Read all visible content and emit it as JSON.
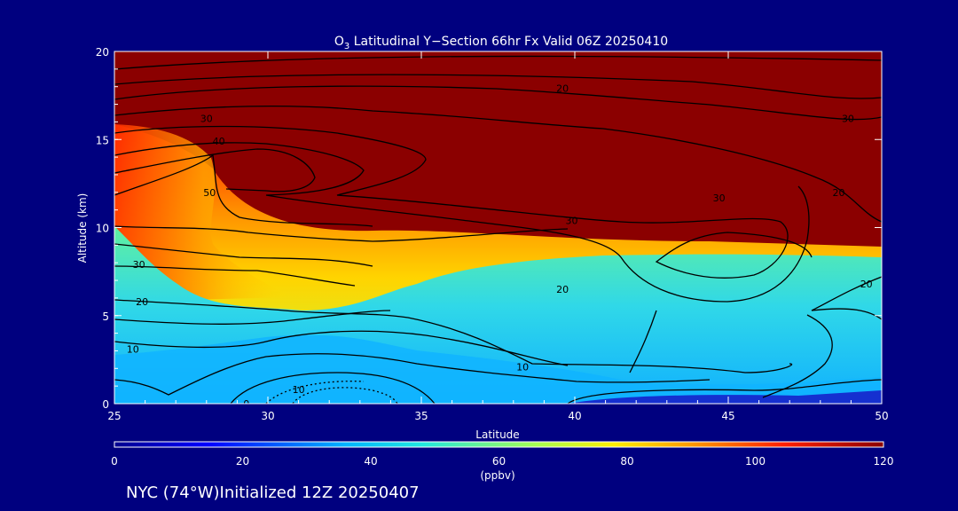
{
  "chart_data": {
    "type": "heatmap",
    "title_prefix": "O",
    "title_subscript": "3",
    "title_rest": " Latitudinal Y−Section 66hr  Fx Valid 06Z 20250410",
    "xlabel": "Latitude",
    "ylabel": "Altitude (km)",
    "xlim": [
      25,
      50
    ],
    "ylim": [
      0,
      20
    ],
    "xticks": [
      "25",
      "30",
      "35",
      "40",
      "45",
      "50"
    ],
    "yticks": [
      "0",
      "5",
      "10",
      "15",
      "20"
    ],
    "colorbar": {
      "min": 0,
      "max": 120,
      "ticks": [
        "0",
        "20",
        "40",
        "60",
        "80",
        "100",
        "120"
      ],
      "unit": "(ppbv)"
    },
    "contour_labels": [
      {
        "text": "20",
        "x": 39.6,
        "y": 17.9
      },
      {
        "text": "30",
        "x": 28.0,
        "y": 16.2
      },
      {
        "text": "30",
        "x": 48.9,
        "y": 16.2
      },
      {
        "text": "40",
        "x": 28.4,
        "y": 14.9
      },
      {
        "text": "50",
        "x": 28.1,
        "y": 12.0
      },
      {
        "text": "30",
        "x": 44.7,
        "y": 11.7
      },
      {
        "text": "20",
        "x": 48.6,
        "y": 12.0
      },
      {
        "text": "30",
        "x": 39.9,
        "y": 10.4
      },
      {
        "text": "30",
        "x": 25.8,
        "y": 7.9
      },
      {
        "text": "20",
        "x": 39.6,
        "y": 6.5
      },
      {
        "text": "20",
        "x": 25.9,
        "y": 5.8
      },
      {
        "text": "20",
        "x": 49.5,
        "y": 6.8
      },
      {
        "text": "10",
        "x": 25.6,
        "y": 3.1
      },
      {
        "text": "10",
        "x": 38.3,
        "y": 2.1
      },
      {
        "text": "10",
        "x": 31.0,
        "y": 0.8
      },
      {
        "text": "0",
        "x": 29.3,
        "y": 0.0
      }
    ]
  },
  "footer": {
    "text": "NYC (74°W)Initialized 12Z 20250407"
  }
}
